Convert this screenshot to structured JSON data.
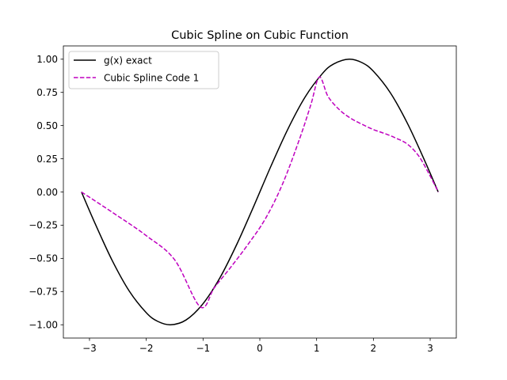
{
  "chart_data": {
    "type": "line",
    "title": "Cubic Spline on Cubic Function",
    "xlabel": "",
    "ylabel": "",
    "xlim": [
      -3.46,
      3.46
    ],
    "ylim": [
      -1.1,
      1.1
    ],
    "xticks": [
      -3,
      -2,
      -1,
      0,
      1,
      2,
      3
    ],
    "xtick_labels": [
      "−3",
      "−2",
      "−1",
      "0",
      "1",
      "2",
      "3"
    ],
    "yticks": [
      -1.0,
      -0.75,
      -0.5,
      -0.25,
      0.0,
      0.25,
      0.5,
      0.75,
      1.0
    ],
    "ytick_labels": [
      "−1.00",
      "−0.75",
      "−0.50",
      "−0.25",
      "0.00",
      "0.25",
      "0.50",
      "0.75",
      "1.00"
    ],
    "grid": false,
    "legend_position": "top-left",
    "series": [
      {
        "name": "g(x) exact",
        "color": "#000000",
        "style": "solid",
        "x": [
          -3.1416,
          -2.9,
          -2.6,
          -2.3,
          -2.0,
          -1.8,
          -1.5708,
          -1.3,
          -1.0,
          -0.7,
          -0.4,
          -0.1,
          0.2,
          0.5,
          0.8,
          1.1,
          1.3,
          1.5708,
          1.8,
          2.0,
          2.3,
          2.6,
          2.9,
          3.1416
        ],
        "y": [
          0.0,
          -0.239,
          -0.516,
          -0.746,
          -0.909,
          -0.974,
          -1.0,
          -0.964,
          -0.841,
          -0.644,
          -0.389,
          -0.1,
          0.199,
          0.479,
          0.717,
          0.891,
          0.964,
          1.0,
          0.974,
          0.909,
          0.746,
          0.516,
          0.239,
          0.0
        ]
      },
      {
        "name": "Cubic Spline Code 1",
        "color": "#bf00bf",
        "style": "dashed",
        "x": [
          -3.1416,
          -2.5,
          -2.0,
          -1.5,
          -1.0472,
          -0.8,
          -0.5,
          -0.2,
          0.1,
          0.4,
          0.7,
          0.9,
          1.0472,
          1.2,
          1.4,
          1.6,
          1.8,
          2.0,
          2.2,
          2.4,
          2.6,
          2.8,
          3.0,
          3.1416
        ],
        "y": [
          0.0,
          -0.181,
          -0.329,
          -0.511,
          -0.866,
          -0.72,
          -0.56,
          -0.39,
          -0.2,
          0.06,
          0.4,
          0.66,
          0.866,
          0.72,
          0.62,
          0.555,
          0.51,
          0.47,
          0.44,
          0.405,
          0.36,
          0.27,
          0.12,
          0.0
        ]
      }
    ]
  }
}
